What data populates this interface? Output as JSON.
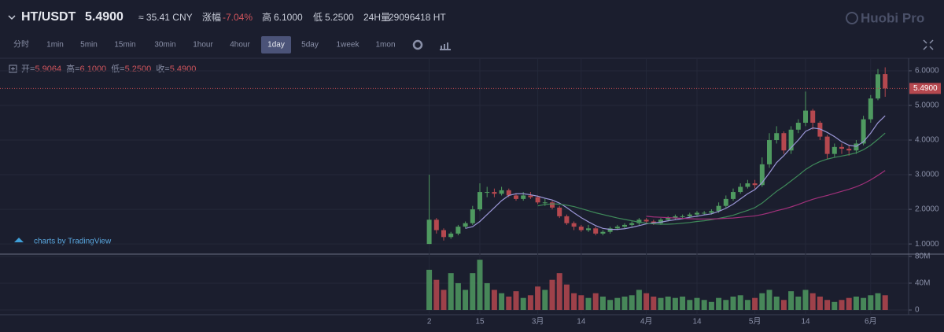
{
  "header": {
    "pair": "HT/USDT",
    "price": "5.4900",
    "cny": "≈ 35.41 CNY",
    "change_label": "涨幅",
    "change": "-7.04%",
    "high_label": "高",
    "high": "6.1000",
    "low_label": "低",
    "low": "5.2500",
    "vol_label": "24H量",
    "vol": "29096418 HT",
    "brand": "Huobi Pro"
  },
  "toolbar": {
    "intervals": [
      "分时",
      "1min",
      "5min",
      "15min",
      "30min",
      "1hour",
      "4hour",
      "1day",
      "5day",
      "1week",
      "1mon"
    ],
    "active": "1day"
  },
  "legend": [
    "开=",
    "5.9064",
    "高=",
    "6.1000",
    "低=",
    "5.2500",
    "收=",
    "5.4900"
  ],
  "watermark": "charts by TradingView",
  "chart_data": {
    "type": "candlestick",
    "categories": [
      "2",
      null,
      null,
      null,
      null,
      null,
      null,
      "15",
      null,
      null,
      null,
      null,
      null,
      null,
      null,
      "3月",
      null,
      null,
      null,
      null,
      null,
      "14",
      null,
      null,
      null,
      null,
      null,
      null,
      null,
      null,
      "4月",
      null,
      null,
      null,
      null,
      null,
      null,
      "14",
      null,
      null,
      null,
      null,
      null,
      null,
      null,
      "5月",
      null,
      null,
      null,
      null,
      null,
      null,
      "14",
      null,
      null,
      null,
      null,
      null,
      null,
      null,
      null,
      "6月",
      null,
      null
    ],
    "open": [
      1.0,
      1.7,
      1.4,
      1.2,
      1.3,
      1.5,
      1.6,
      2.0,
      2.5,
      2.5,
      2.45,
      2.55,
      2.4,
      2.3,
      2.4,
      2.35,
      2.2,
      2.2,
      2.05,
      1.8,
      1.6,
      1.5,
      1.4,
      1.45,
      1.3,
      1.35,
      1.45,
      1.5,
      1.55,
      1.6,
      1.7,
      1.65,
      1.6,
      1.7,
      1.75,
      1.8,
      1.8,
      1.85,
      1.9,
      1.9,
      1.95,
      2.1,
      2.3,
      2.5,
      2.65,
      2.75,
      2.7,
      3.3,
      4.0,
      4.2,
      3.7,
      4.3,
      4.5,
      4.85,
      4.5,
      4.1,
      3.6,
      3.8,
      3.75,
      3.7,
      3.9,
      4.6,
      5.2,
      5.9064
    ],
    "high": [
      3.0,
      1.75,
      1.45,
      1.35,
      1.55,
      1.65,
      2.1,
      2.75,
      2.65,
      2.6,
      2.65,
      2.6,
      2.45,
      2.5,
      2.5,
      2.4,
      2.3,
      2.25,
      2.1,
      1.85,
      1.65,
      1.55,
      1.55,
      1.5,
      1.4,
      1.5,
      1.55,
      1.6,
      1.65,
      1.75,
      1.75,
      1.7,
      1.75,
      1.8,
      1.85,
      1.85,
      1.9,
      1.95,
      1.95,
      2.0,
      2.2,
      2.4,
      2.6,
      2.75,
      2.85,
      2.85,
      3.5,
      4.2,
      4.4,
      4.25,
      4.4,
      4.6,
      5.4,
      4.9,
      4.55,
      4.15,
      3.9,
      3.9,
      3.85,
      4.0,
      4.7,
      5.3,
      6.05,
      6.1
    ],
    "low": [
      1.0,
      1.3,
      1.1,
      1.15,
      1.25,
      1.45,
      1.55,
      1.95,
      2.35,
      2.35,
      2.4,
      2.35,
      2.25,
      2.25,
      2.3,
      2.15,
      2.1,
      2.0,
      1.75,
      1.55,
      1.4,
      1.35,
      1.35,
      1.25,
      1.25,
      1.3,
      1.4,
      1.45,
      1.5,
      1.55,
      1.6,
      1.55,
      1.55,
      1.65,
      1.7,
      1.75,
      1.75,
      1.8,
      1.85,
      1.85,
      1.9,
      2.05,
      2.25,
      2.45,
      2.6,
      2.6,
      2.65,
      3.2,
      3.9,
      3.6,
      3.6,
      4.2,
      4.4,
      4.3,
      4.0,
      3.45,
      3.5,
      3.6,
      3.55,
      3.6,
      3.85,
      4.5,
      5.15,
      5.25
    ],
    "close": [
      1.7,
      1.4,
      1.2,
      1.3,
      1.5,
      1.6,
      2.0,
      2.5,
      2.5,
      2.45,
      2.55,
      2.4,
      2.3,
      2.4,
      2.35,
      2.2,
      2.2,
      2.05,
      1.8,
      1.6,
      1.5,
      1.4,
      1.45,
      1.3,
      1.35,
      1.45,
      1.5,
      1.55,
      1.6,
      1.7,
      1.65,
      1.6,
      1.7,
      1.75,
      1.8,
      1.8,
      1.85,
      1.9,
      1.9,
      1.95,
      2.1,
      2.3,
      2.5,
      2.65,
      2.75,
      2.7,
      3.3,
      4.0,
      4.2,
      3.7,
      4.3,
      4.5,
      4.85,
      4.5,
      4.1,
      3.6,
      3.8,
      3.75,
      3.7,
      3.9,
      4.6,
      5.2,
      5.9,
      5.49
    ],
    "volume": [
      60,
      45,
      30,
      55,
      40,
      30,
      55,
      75,
      40,
      30,
      25,
      20,
      28,
      18,
      22,
      35,
      30,
      45,
      55,
      38,
      25,
      22,
      18,
      25,
      20,
      15,
      18,
      20,
      22,
      30,
      25,
      20,
      18,
      20,
      18,
      20,
      15,
      18,
      15,
      12,
      18,
      15,
      20,
      22,
      15,
      18,
      25,
      30,
      20,
      15,
      28,
      20,
      30,
      25,
      20,
      15,
      12,
      15,
      18,
      20,
      18,
      22,
      25,
      22
    ],
    "ma_series": [
      {
        "color": "#9a96d6",
        "values": [
          null,
          null,
          null,
          null,
          null,
          1.45,
          1.5,
          1.65,
          1.85,
          2.05,
          2.25,
          2.4,
          2.45,
          2.45,
          2.42,
          2.38,
          2.32,
          2.27,
          2.18,
          2.05,
          1.9,
          1.76,
          1.64,
          1.53,
          1.45,
          1.42,
          1.42,
          1.44,
          1.48,
          1.53,
          1.58,
          1.61,
          1.63,
          1.67,
          1.7,
          1.73,
          1.77,
          1.8,
          1.84,
          1.87,
          1.94,
          2.03,
          2.15,
          2.3,
          2.45,
          2.57,
          2.77,
          3.05,
          3.35,
          3.55,
          3.78,
          4.0,
          4.25,
          4.35,
          4.32,
          4.22,
          4.1,
          3.95,
          3.85,
          3.82,
          3.95,
          4.2,
          4.5,
          4.7
        ]
      },
      {
        "color": "#3f8a5a",
        "values": [
          null,
          null,
          null,
          null,
          null,
          null,
          null,
          null,
          null,
          null,
          null,
          null,
          null,
          null,
          null,
          2.1,
          2.14,
          2.16,
          2.15,
          2.12,
          2.08,
          2.02,
          1.96,
          1.9,
          1.85,
          1.8,
          1.75,
          1.71,
          1.67,
          1.63,
          1.6,
          1.58,
          1.57,
          1.57,
          1.58,
          1.6,
          1.62,
          1.65,
          1.67,
          1.7,
          1.74,
          1.78,
          1.83,
          1.9,
          1.97,
          2.05,
          2.18,
          2.35,
          2.52,
          2.66,
          2.82,
          2.98,
          3.15,
          3.28,
          3.38,
          3.45,
          3.5,
          3.54,
          3.58,
          3.63,
          3.72,
          3.85,
          4.02,
          4.2
        ]
      },
      {
        "color": "#a0307a",
        "values": [
          null,
          null,
          null,
          null,
          null,
          null,
          null,
          null,
          null,
          null,
          null,
          null,
          null,
          null,
          null,
          null,
          null,
          null,
          null,
          null,
          null,
          null,
          null,
          null,
          null,
          null,
          null,
          null,
          null,
          null,
          1.8,
          1.78,
          1.77,
          1.76,
          1.75,
          1.74,
          1.73,
          1.72,
          1.72,
          1.72,
          1.73,
          1.74,
          1.75,
          1.77,
          1.79,
          1.81,
          1.85,
          1.9,
          1.96,
          2.01,
          2.07,
          2.14,
          2.22,
          2.29,
          2.35,
          2.4,
          2.46,
          2.52,
          2.58,
          2.65,
          2.74,
          2.85,
          2.98,
          3.12
        ]
      }
    ],
    "up_color": "#4f9a60",
    "down_color": "#b5484f",
    "ylim": [
      0.73,
      6.34
    ],
    "yticks": [
      {
        "value": 1,
        "label": "1.0000"
      },
      {
        "value": 2,
        "label": "2.0000"
      },
      {
        "value": 3,
        "label": "3.0000"
      },
      {
        "value": 4,
        "label": "4.0000"
      },
      {
        "value": 5,
        "label": "5.0000"
      },
      {
        "value": 6,
        "label": "6.0000"
      }
    ],
    "last_price_label": "5.4900",
    "y2lim": [
      -7,
      81
    ],
    "y2ticks": [
      0,
      {
        "value": 40,
        "label": "40M"
      },
      {
        "value": 80,
        "label": "80M"
      }
    ],
    "grid": true
  }
}
